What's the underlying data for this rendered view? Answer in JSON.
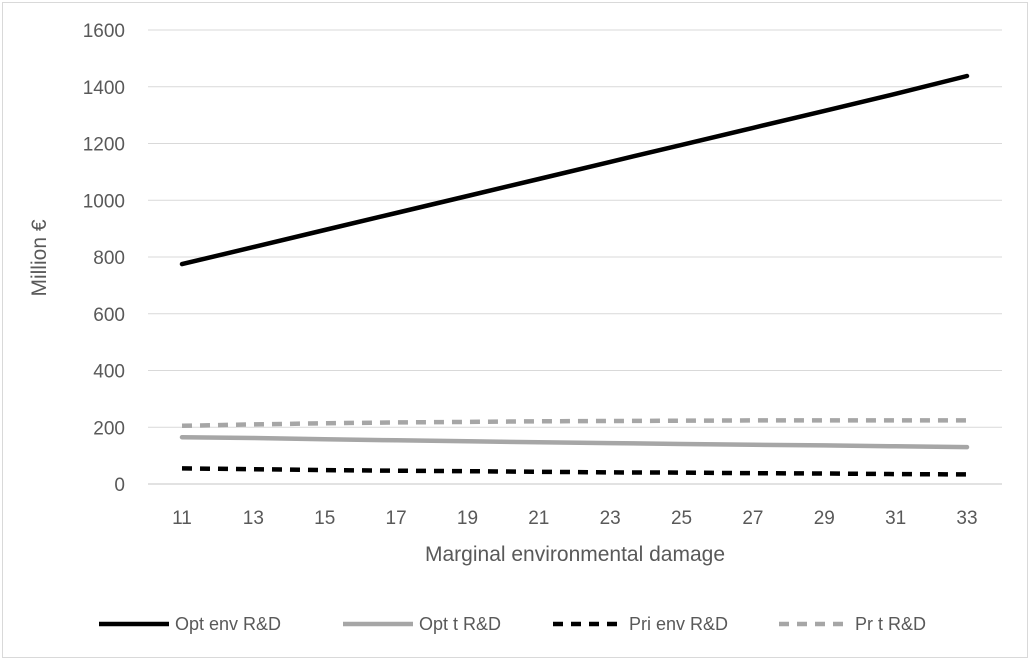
{
  "chart_data": {
    "type": "line",
    "title": "",
    "xlabel": "Marginal environmental damage",
    "ylabel": "Million €",
    "x": [
      11,
      13,
      15,
      17,
      19,
      21,
      23,
      25,
      27,
      29,
      31,
      33
    ],
    "xlim": [
      11,
      33
    ],
    "ylim": [
      0,
      1600
    ],
    "yticks": [
      0,
      200,
      400,
      600,
      800,
      1000,
      1200,
      1400,
      1600
    ],
    "grid": "horizontal",
    "legend_position": "bottom",
    "series": [
      {
        "name": "Opt env R&D",
        "color": "#000000",
        "style": "solid",
        "values": [
          775,
          835,
          895,
          955,
          1015,
          1075,
          1135,
          1195,
          1255,
          1315,
          1375,
          1438
        ]
      },
      {
        "name": "Opt t R&D",
        "color": "#a6a6a6",
        "style": "solid",
        "values": [
          165,
          162,
          158,
          154,
          151,
          147,
          144,
          141,
          138,
          136,
          133,
          130
        ]
      },
      {
        "name": "Pri env R&D",
        "color": "#000000",
        "style": "dashed",
        "values": [
          55,
          52,
          49,
          47,
          45,
          43,
          41,
          40,
          38,
          37,
          35,
          34
        ]
      },
      {
        "name": "Pr t R&D",
        "color": "#a6a6a6",
        "style": "dashed",
        "values": [
          205,
          210,
          214,
          217,
          219,
          221,
          222,
          223,
          224,
          224,
          224,
          224
        ]
      }
    ]
  }
}
